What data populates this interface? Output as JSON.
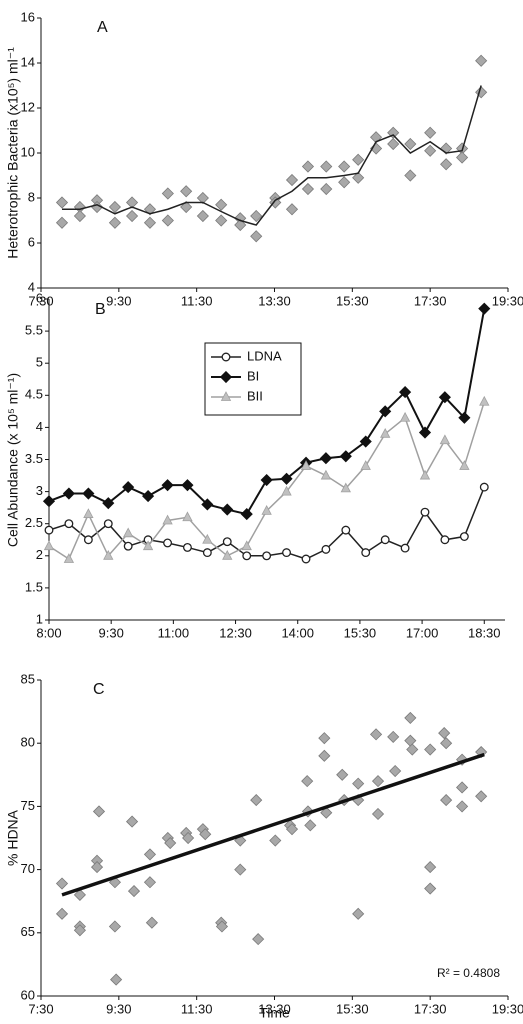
{
  "chart_data": [
    {
      "type": "line",
      "panel_label": "A",
      "y_label": "Heterotrophic Bacteria (x10⁵) ml⁻¹",
      "xlim": [
        7.5,
        19.5
      ],
      "xticks": [
        {
          "value": 7.5,
          "label": "7:30"
        },
        {
          "value": 9.5,
          "label": "9:30"
        },
        {
          "value": 11.5,
          "label": "11:30"
        },
        {
          "value": 13.5,
          "label": "13:30"
        },
        {
          "value": 15.5,
          "label": "15:30"
        },
        {
          "value": 17.5,
          "label": "17:30"
        },
        {
          "value": 19.5,
          "label": "19:30"
        }
      ],
      "ylim": [
        4,
        16
      ],
      "yticks": [
        4,
        6,
        8,
        10,
        12,
        14,
        16
      ],
      "x": [
        8.04,
        8.5,
        8.94,
        9.4,
        9.84,
        10.3,
        10.76,
        11.23,
        11.66,
        12.13,
        12.62,
        13.03,
        13.52,
        13.95,
        14.36,
        14.83,
        15.29,
        15.65,
        16.11,
        16.55,
        16.99,
        17.5,
        17.91,
        18.32,
        18.81
      ],
      "series": [
        {
          "marker": "diamond",
          "line": false,
          "color": "#a8a8a8",
          "x": [
            8.04,
            8.5,
            8.94,
            9.4,
            9.84,
            10.3,
            10.76,
            11.23,
            11.66,
            12.13,
            12.62,
            13.03,
            13.52,
            13.95,
            14.36,
            14.83,
            15.29,
            15.65,
            16.11,
            16.55,
            16.99,
            17.5,
            17.91,
            18.32,
            18.81,
            8.04,
            8.5,
            8.94,
            9.4,
            9.84,
            10.3,
            10.76,
            11.23,
            11.66,
            12.13,
            12.62,
            13.03,
            13.52,
            13.95,
            14.36,
            14.83,
            15.29,
            15.65,
            16.11,
            16.55,
            16.99,
            17.5,
            17.91,
            18.32,
            18.81
          ],
          "values": [
            7.8,
            7.6,
            7.9,
            7.6,
            7.8,
            7.5,
            8.2,
            8.3,
            8.0,
            7.7,
            7.1,
            7.2,
            8.0,
            8.8,
            9.4,
            9.4,
            9.4,
            9.7,
            10.7,
            10.9,
            10.4,
            10.9,
            10.2,
            10.2,
            14.1,
            6.9,
            7.2,
            7.6,
            6.9,
            7.2,
            6.9,
            7.0,
            7.6,
            7.2,
            7.0,
            6.8,
            6.3,
            7.8,
            7.5,
            8.4,
            8.4,
            8.7,
            8.9,
            10.2,
            10.4,
            9.0,
            10.1,
            9.5,
            9.8,
            12.7
          ]
        },
        {
          "marker": "none",
          "line": true,
          "color": "#222222",
          "width": 1.5,
          "values": [
            7.5,
            7.5,
            7.7,
            7.3,
            7.6,
            7.3,
            7.5,
            7.8,
            7.8,
            7.4,
            7.0,
            6.8,
            7.9,
            8.3,
            8.9,
            8.9,
            9.0,
            9.1,
            10.5,
            10.8,
            10.0,
            10.5,
            10.0,
            10.1,
            13.0
          ]
        }
      ]
    },
    {
      "type": "line",
      "panel_label": "B",
      "y_label": "Cell Abundance (x 10⁵ ml⁻¹)",
      "legend": "upper center",
      "xlim": [
        8,
        19
      ],
      "xticks": [
        {
          "value": 8,
          "label": "8:00"
        },
        {
          "value": 9.5,
          "label": "9:30"
        },
        {
          "value": 11,
          "label": "11:00"
        },
        {
          "value": 12.5,
          "label": "12:30"
        },
        {
          "value": 14,
          "label": "14:00"
        },
        {
          "value": 15.5,
          "label": "15:30"
        },
        {
          "value": 17,
          "label": "17:00"
        },
        {
          "value": 18.5,
          "label": "18:30"
        }
      ],
      "ylim": [
        1,
        6
      ],
      "yticks": [
        1,
        1.5,
        2,
        2.5,
        3,
        3.5,
        4,
        4.5,
        5,
        5.5,
        6
      ],
      "x": [
        8.0,
        8.48,
        8.95,
        9.43,
        9.91,
        10.39,
        10.86,
        11.34,
        11.82,
        12.3,
        12.77,
        13.25,
        13.73,
        14.2,
        14.68,
        15.16,
        15.64,
        16.11,
        16.59,
        17.07,
        17.55,
        18.02,
        18.5
      ],
      "series": [
        {
          "name": "LDNA",
          "marker": "circle",
          "line": true,
          "color": "#222222",
          "width": 1.5,
          "values": [
            2.4,
            2.5,
            2.25,
            2.5,
            2.15,
            2.25,
            2.2,
            2.13,
            2.05,
            2.22,
            2.0,
            2.0,
            2.05,
            1.95,
            2.1,
            2.4,
            2.05,
            2.25,
            2.12,
            2.68,
            2.25,
            2.3,
            3.07
          ]
        },
        {
          "name": "BI",
          "marker": "diamond",
          "line": true,
          "color": "#111111",
          "width": 2,
          "values": [
            2.85,
            2.97,
            2.97,
            2.82,
            3.07,
            2.93,
            3.1,
            3.1,
            2.8,
            2.72,
            2.65,
            3.18,
            3.2,
            3.45,
            3.52,
            3.55,
            3.78,
            4.25,
            4.55,
            3.92,
            4.47,
            4.15,
            5.85
          ]
        },
        {
          "name": "BII",
          "marker": "triangle",
          "line": true,
          "color": "#a0a0a0",
          "width": 1.5,
          "values": [
            2.15,
            1.95,
            2.65,
            2.0,
            2.35,
            2.15,
            2.55,
            2.6,
            2.25,
            2.0,
            2.15,
            2.7,
            3.0,
            3.4,
            3.25,
            3.05,
            3.4,
            3.9,
            4.15,
            3.25,
            3.8,
            3.4,
            4.4
          ]
        }
      ]
    },
    {
      "type": "scatter",
      "panel_label": "C",
      "y_label": "% HDNA",
      "x_label": "Time",
      "annotation": "R² = 0.4808",
      "xlim": [
        7.5,
        19.5
      ],
      "xticks": [
        {
          "value": 7.5,
          "label": "7:30"
        },
        {
          "value": 9.5,
          "label": "9:30"
        },
        {
          "value": 11.5,
          "label": "11:30"
        },
        {
          "value": 13.5,
          "label": "13:30"
        },
        {
          "value": 15.5,
          "label": "15:30"
        },
        {
          "value": 17.5,
          "label": "17:30"
        },
        {
          "value": 19.5,
          "label": "19:30"
        }
      ],
      "ylim": [
        60,
        85
      ],
      "yticks": [
        60,
        65,
        70,
        75,
        80,
        85
      ],
      "series": [
        {
          "marker": "diamond",
          "line": false,
          "color": "#a8a8a8",
          "x": [
            8.04,
            8.04,
            8.5,
            8.5,
            8.5,
            8.94,
            8.94,
            8.99,
            9.4,
            9.4,
            9.43,
            9.84,
            9.89,
            10.3,
            10.3,
            10.35,
            10.76,
            10.82,
            11.23,
            11.28,
            11.66,
            11.72,
            12.13,
            12.15,
            12.62,
            12.62,
            13.03,
            13.08,
            13.52,
            13.9,
            13.95,
            14.34,
            14.36,
            14.42,
            14.78,
            14.78,
            14.83,
            15.24,
            15.29,
            15.65,
            15.65,
            15.65,
            16.11,
            16.16,
            16.16,
            16.55,
            16.6,
            16.99,
            16.99,
            17.04,
            17.5,
            17.5,
            17.5,
            17.86,
            17.91,
            17.91,
            18.32,
            18.32,
            18.32,
            18.81,
            18.81
          ],
          "values": [
            68.9,
            66.5,
            68,
            65.5,
            65.2,
            70.7,
            70.2,
            74.6,
            69,
            65.5,
            61.3,
            73.8,
            68.3,
            71.2,
            69,
            65.8,
            72.5,
            72.1,
            72.9,
            72.5,
            73.2,
            72.8,
            65.8,
            65.5,
            72.3,
            70,
            75.5,
            64.5,
            72.3,
            73.5,
            73.2,
            77,
            74.6,
            73.5,
            80.4,
            79,
            74.5,
            77.5,
            75.5,
            75.5,
            76.8,
            66.5,
            80.7,
            77,
            74.4,
            80.5,
            77.8,
            82,
            80.2,
            79.5,
            79.5,
            70.2,
            68.5,
            80.8,
            80,
            75.5,
            76.5,
            75,
            78.7,
            79.3,
            75.8
          ]
        },
        {
          "marker": "none",
          "line": true,
          "color": "#111111",
          "width": 3.5,
          "x": [
            8.04,
            18.89
          ],
          "values": [
            68,
            79.1
          ]
        }
      ]
    }
  ]
}
